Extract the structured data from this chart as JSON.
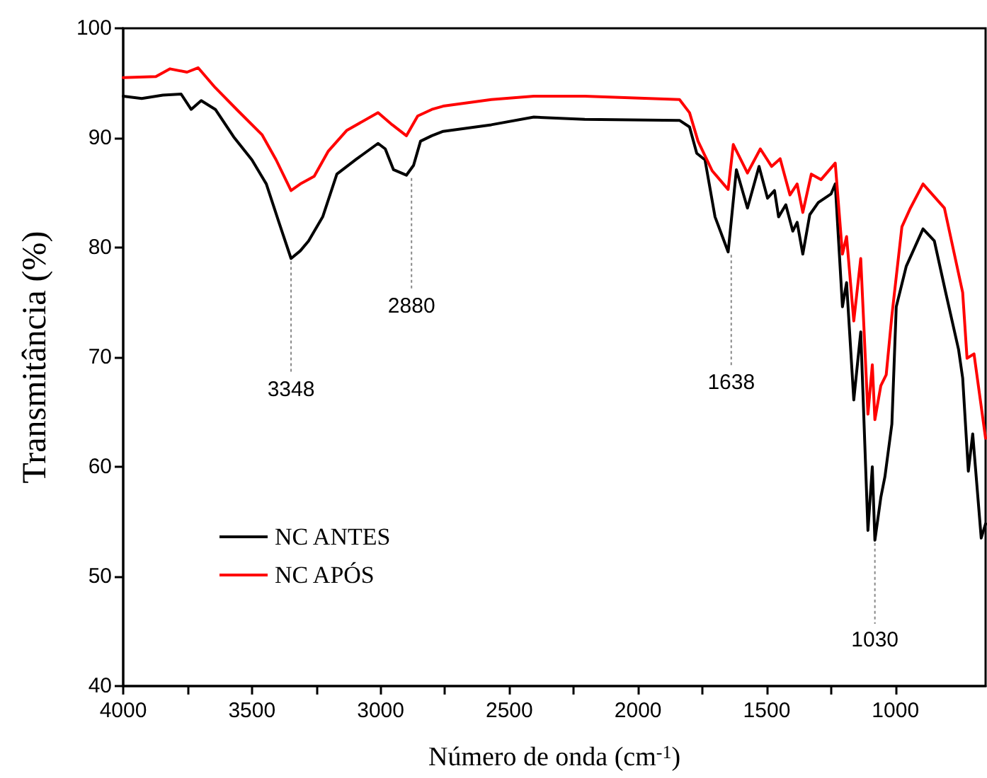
{
  "chart_data": {
    "type": "line",
    "xlabel": "Número de onda (cm$^{-1}$)",
    "ylabel": "Transmitância (%)",
    "xlim": [
      4000,
      650
    ],
    "xticks": [
      4000,
      3500,
      3000,
      2500,
      2000,
      1500,
      1000
    ],
    "ylim": [
      40,
      100
    ],
    "yticks": [
      40,
      50,
      60,
      70,
      80,
      90,
      100
    ],
    "grid": false,
    "legend": "bottom left",
    "marker": "none",
    "line_style": "solid",
    "series": [
      {
        "name": "NC ANTES",
        "color": "#000000",
        "x": [
          4000,
          3928,
          3846,
          3775,
          3736,
          3697,
          3642,
          3571,
          3500,
          3444,
          3395,
          3348,
          3312,
          3280,
          3225,
          3170,
          3092,
          3010,
          2982,
          2950,
          2900,
          2872,
          2845,
          2801,
          2757,
          2570,
          2405,
          2207,
          1839,
          1800,
          1772,
          1740,
          1701,
          1650,
          1618,
          1575,
          1530,
          1497,
          1470,
          1454,
          1426,
          1399,
          1382,
          1360,
          1333,
          1300,
          1250,
          1234,
          1206,
          1190,
          1162,
          1135,
          1107,
          1090,
          1080,
          1057,
          1041,
          1014,
          997,
          958,
          893,
          849,
          805,
          755,
          739,
          717,
          700,
          667,
          650
        ],
        "values": [
          93.8,
          93.6,
          93.9,
          94.0,
          92.6,
          93.4,
          92.6,
          90.1,
          88.0,
          85.8,
          82.3,
          79.0,
          79.7,
          80.6,
          82.8,
          86.7,
          88.1,
          89.5,
          89.0,
          87.1,
          86.6,
          87.5,
          89.7,
          90.2,
          90.6,
          91.2,
          91.9,
          91.7,
          91.6,
          91.0,
          88.6,
          88.0,
          82.8,
          79.6,
          87.1,
          83.6,
          87.4,
          84.5,
          85.2,
          82.8,
          83.9,
          81.5,
          82.3,
          79.4,
          83.0,
          84.1,
          84.9,
          85.8,
          74.6,
          76.8,
          66.1,
          72.3,
          54.2,
          60.0,
          53.3,
          57.2,
          59.1,
          63.9,
          74.6,
          78.3,
          81.7,
          80.6,
          75.9,
          70.7,
          68.1,
          59.6,
          63.0,
          53.5,
          54.8
        ]
      },
      {
        "name": "NC APÓS",
        "color": "#ff0000",
        "x": [
          4000,
          3873,
          3818,
          3752,
          3709,
          3643,
          3555,
          3461,
          3406,
          3348,
          3312,
          3258,
          3203,
          3131,
          3010,
          2955,
          2900,
          2856,
          2801,
          2757,
          2570,
          2405,
          2207,
          1839,
          1800,
          1767,
          1712,
          1650,
          1630,
          1575,
          1525,
          1481,
          1448,
          1410,
          1382,
          1360,
          1327,
          1289,
          1234,
          1206,
          1190,
          1162,
          1135,
          1107,
          1090,
          1080,
          1057,
          1036,
          1014,
          975,
          942,
          893,
          810,
          739,
          722,
          695,
          650
        ],
        "values": [
          95.5,
          95.6,
          96.3,
          96.0,
          96.4,
          94.6,
          92.5,
          90.3,
          88.0,
          85.2,
          85.8,
          86.5,
          88.8,
          90.7,
          92.3,
          91.2,
          90.2,
          92.0,
          92.6,
          92.9,
          93.5,
          93.8,
          93.8,
          93.5,
          92.3,
          89.7,
          87.0,
          85.3,
          89.4,
          86.8,
          89.0,
          87.4,
          88.1,
          84.8,
          85.8,
          83.2,
          86.7,
          86.2,
          87.7,
          79.4,
          81.0,
          73.3,
          79.0,
          64.8,
          69.3,
          64.3,
          67.4,
          68.4,
          73.8,
          81.9,
          83.6,
          85.8,
          83.6,
          75.9,
          69.9,
          70.3,
          62.6
        ]
      }
    ],
    "annotations": [
      {
        "text": "3348",
        "x": 3348,
        "y": 79.0
      },
      {
        "text": "2880",
        "x": 2880,
        "y": 86.6
      },
      {
        "text": "1638",
        "x": 1638,
        "y": 79.6
      },
      {
        "text": "1030",
        "x": 1080,
        "y": 53.3
      }
    ]
  }
}
